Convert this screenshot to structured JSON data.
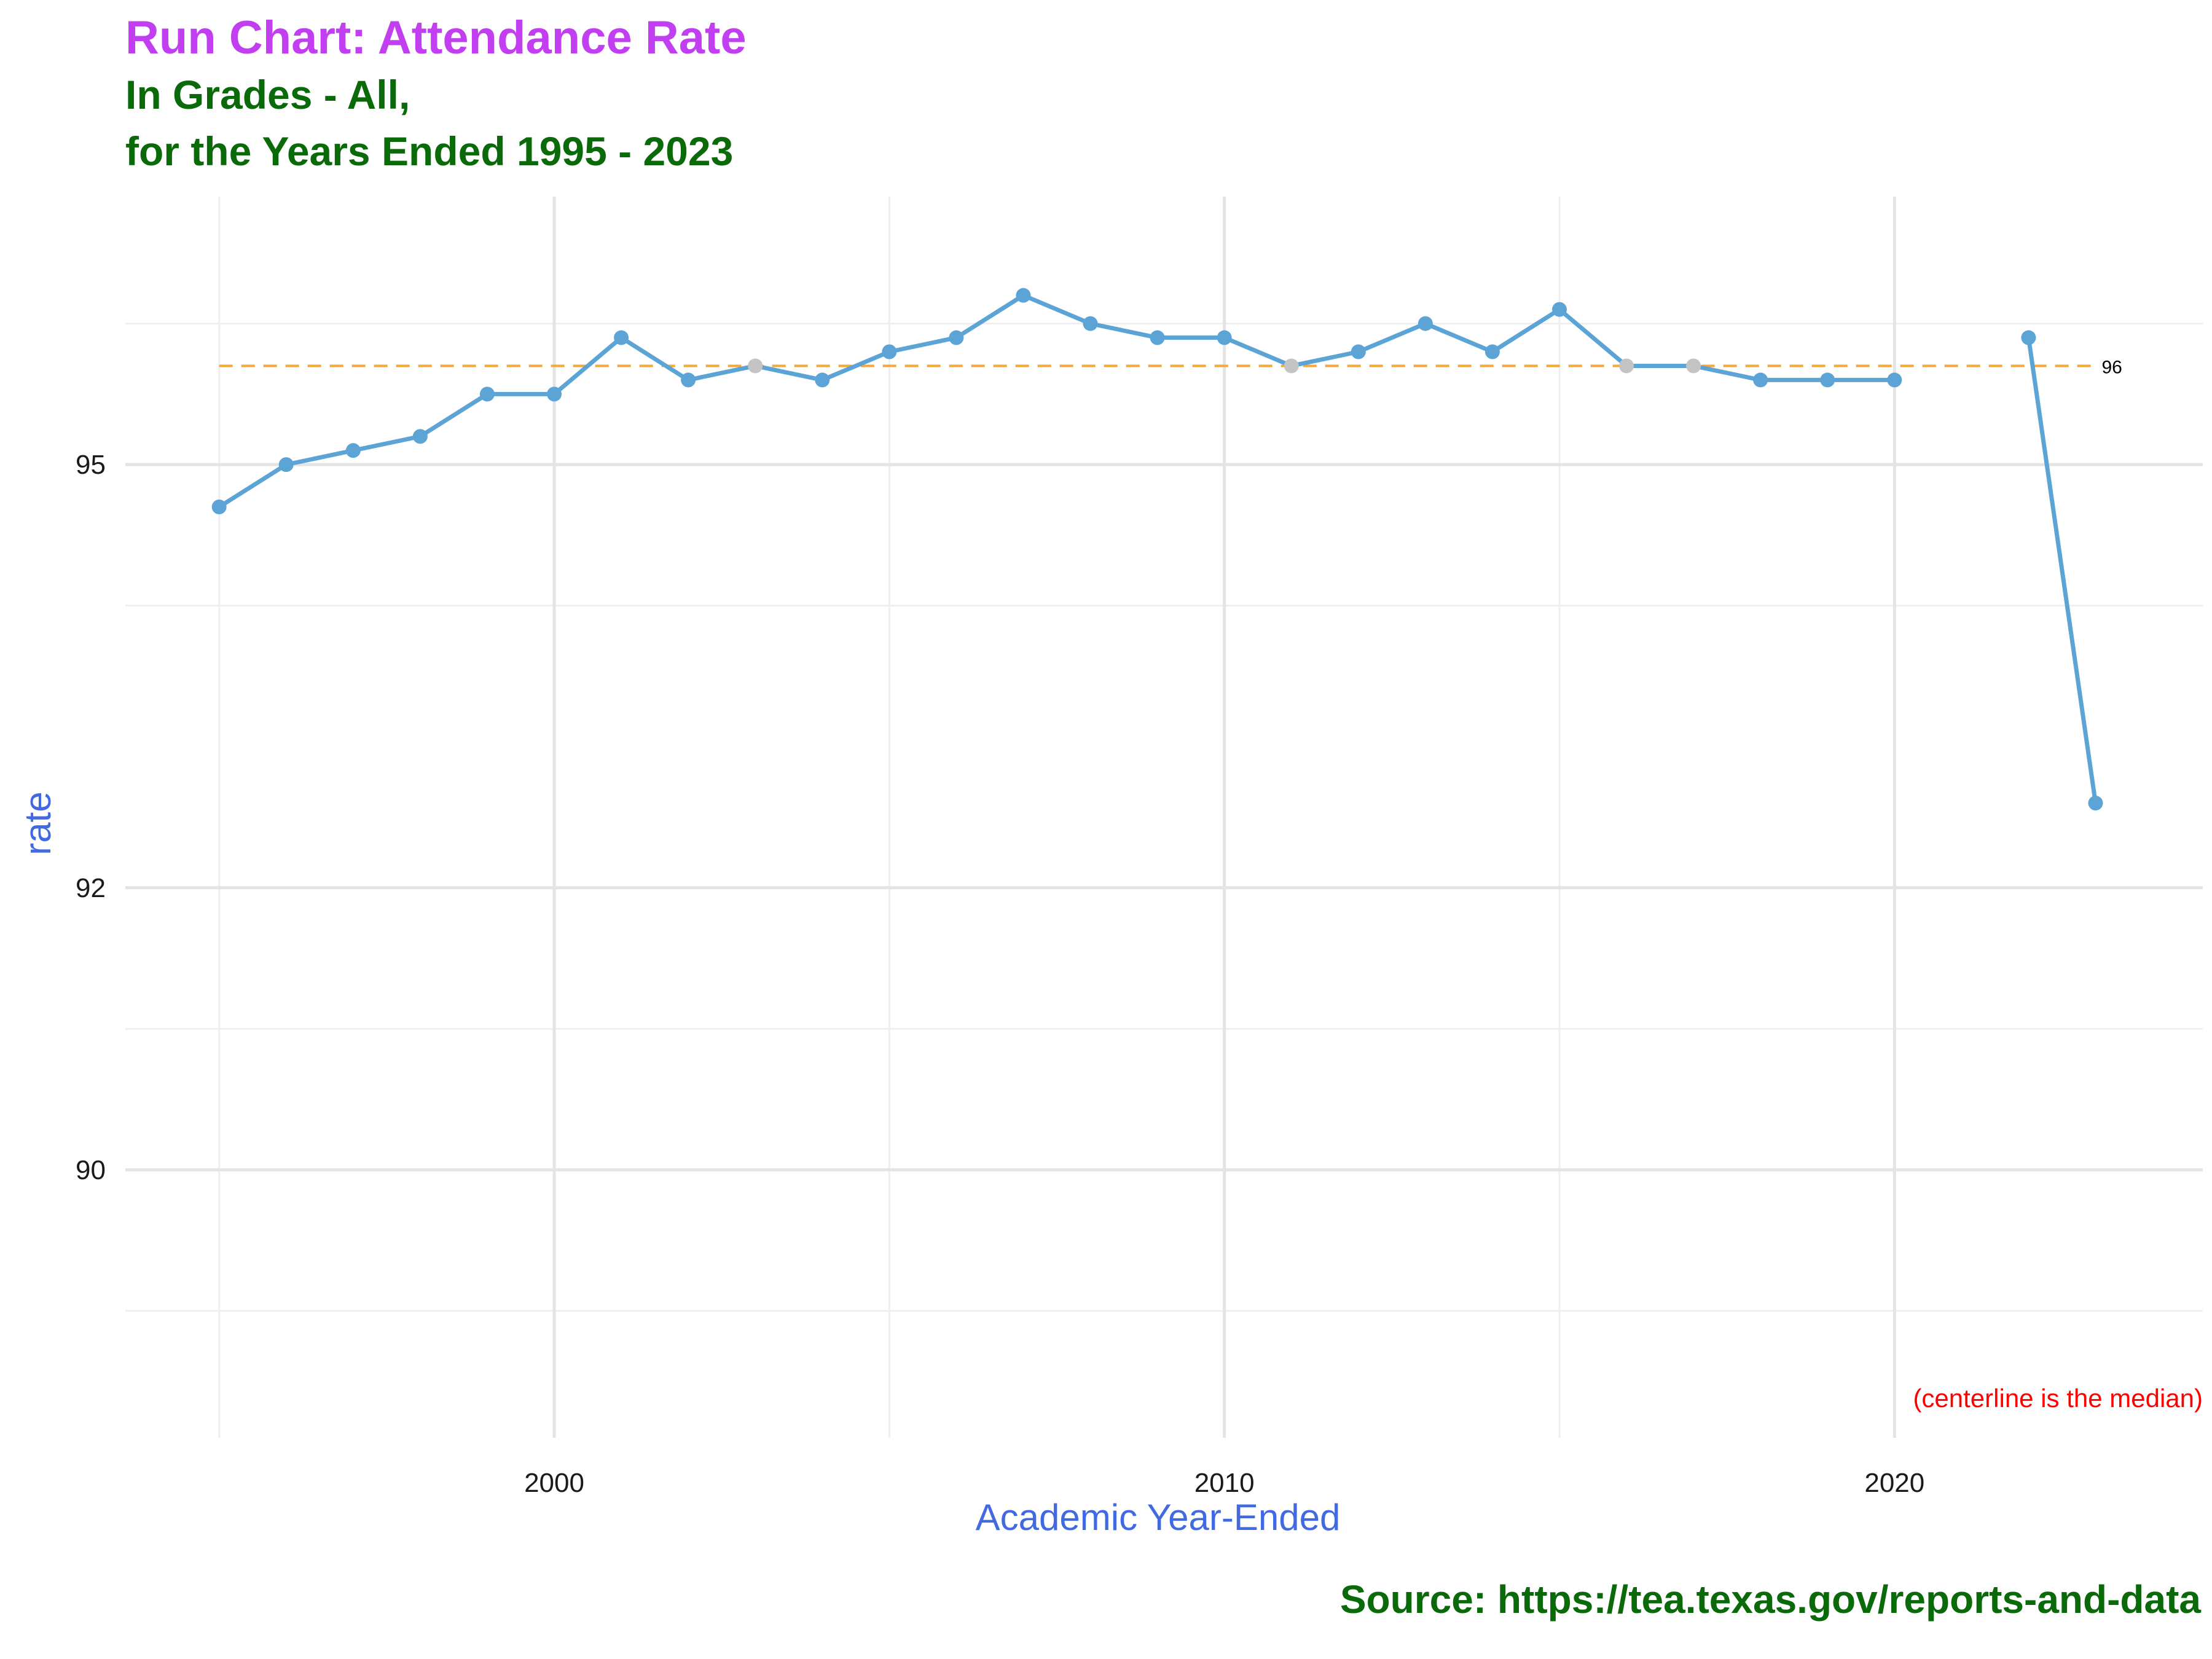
{
  "title": "Run Chart: Attendance Rate",
  "subtitle_line1": "In Grades - All,",
  "subtitle_line2": "for the Years Ended 1995 - 2023",
  "caption": "Source:  https://tea.texas.gov/reports-and-data",
  "annotation": "(centerline is the median)",
  "colors": {
    "title": "#c13ff0",
    "subtitle": "#0a6a0a",
    "axis_title": "#4169e1",
    "line": "#5ca4d6",
    "point": "#5ca4d6",
    "point_on_median": "#c4c4c4",
    "centerline": "#f2a93b",
    "annotation": "#ff0000"
  },
  "chart_data": {
    "type": "line",
    "xlabel": "Academic Year-Ended",
    "ylabel": "rate",
    "xlim": [
      1993.6,
      2024.6
    ],
    "ylim": [
      88.1,
      96.9
    ],
    "x_ticks": [
      2000,
      2010,
      2020
    ],
    "y_ticks": [
      90,
      92,
      95
    ],
    "grid": true,
    "centerline": {
      "value": 95.7,
      "label": "96"
    },
    "series": [
      {
        "x": [
          1995,
          1996,
          1997,
          1998,
          1999,
          2000,
          2001,
          2002,
          2003,
          2004,
          2005,
          2006,
          2007,
          2008,
          2009,
          2010,
          2011,
          2012,
          2013,
          2014,
          2015,
          2016,
          2017,
          2018,
          2019,
          2020,
          2021,
          2022,
          2023
        ],
        "y": [
          94.7,
          95.0,
          95.1,
          95.2,
          95.5,
          95.5,
          95.9,
          95.6,
          95.7,
          95.6,
          95.8,
          95.9,
          96.2,
          96.0,
          95.9,
          95.9,
          95.7,
          95.8,
          96.0,
          95.8,
          96.1,
          95.7,
          95.7,
          95.6,
          95.6,
          95.6,
          null,
          95.9,
          92.6
        ]
      }
    ]
  }
}
